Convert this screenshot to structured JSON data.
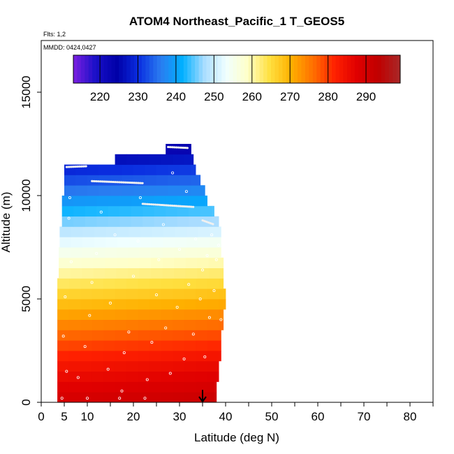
{
  "chart_data": {
    "type": "heatmap",
    "title": "ATOM4 Northeast_Pacific_1 T_GEOS5",
    "subtitle_flights": "Flts: 1,2",
    "subtitle_dates": "MMDD: 0424,0427",
    "xlabel": "Latitude (deg N)",
    "ylabel": "Altitude (m)",
    "xlim": [
      0,
      85
    ],
    "ylim": [
      0,
      17500
    ],
    "x_ticks": [
      0,
      5,
      10,
      20,
      30,
      40,
      50,
      60,
      70,
      80
    ],
    "x_minor_ticks": [
      0,
      5,
      10,
      15,
      20,
      25,
      30,
      35,
      40,
      45,
      50,
      55,
      60,
      65,
      70,
      75,
      80,
      85
    ],
    "y_ticks": [
      0,
      5000,
      10000,
      15000
    ],
    "grid": false,
    "colorbar": {
      "range": [
        213,
        299
      ],
      "ticks": [
        220,
        230,
        240,
        250,
        260,
        270,
        280,
        290
      ],
      "colors": [
        "#7b1fe0",
        "#1a10c8",
        "#0000a8",
        "#0a2ee0",
        "#2a7cf0",
        "#00b0ff",
        "#a8dcff",
        "#f0ffff",
        "#ffffc8",
        "#ffe040",
        "#ffb000",
        "#ff7000",
        "#ff2000",
        "#e00000",
        "#c00000",
        "#a82828"
      ]
    },
    "temperature_profile": {
      "altitudes": [
        0,
        2000,
        4000,
        6000,
        8000,
        10000,
        11500,
        12500
      ],
      "temperatures": [
        290,
        283,
        273,
        262,
        251,
        237,
        228,
        219
      ]
    },
    "bands": [
      {
        "altitude_bottom": 0,
        "altitude_top": 500,
        "lat_start": 3.5,
        "lat_end": 38
      },
      {
        "altitude_bottom": 500,
        "altitude_top": 1000,
        "lat_start": 3.5,
        "lat_end": 38
      },
      {
        "altitude_bottom": 1000,
        "altitude_top": 1500,
        "lat_start": 3.5,
        "lat_end": 38.5
      },
      {
        "altitude_bottom": 1500,
        "altitude_top": 2000,
        "lat_start": 3.5,
        "lat_end": 38.5
      },
      {
        "altitude_bottom": 2000,
        "altitude_top": 2500,
        "lat_start": 3.5,
        "lat_end": 39
      },
      {
        "altitude_bottom": 2500,
        "altitude_top": 3000,
        "lat_start": 3.5,
        "lat_end": 39
      },
      {
        "altitude_bottom": 3000,
        "altitude_top": 3500,
        "lat_start": 3.5,
        "lat_end": 39
      },
      {
        "altitude_bottom": 3500,
        "altitude_top": 4000,
        "lat_start": 3.5,
        "lat_end": 39.5
      },
      {
        "altitude_bottom": 4000,
        "altitude_top": 4500,
        "lat_start": 3.5,
        "lat_end": 39.5
      },
      {
        "altitude_bottom": 4500,
        "altitude_top": 5000,
        "lat_start": 3.5,
        "lat_end": 40
      },
      {
        "altitude_bottom": 5000,
        "altitude_top": 5500,
        "lat_start": 3.5,
        "lat_end": 40
      },
      {
        "altitude_bottom": 5500,
        "altitude_top": 6000,
        "lat_start": 3.5,
        "lat_end": 39.5
      },
      {
        "altitude_bottom": 6000,
        "altitude_top": 6500,
        "lat_start": 3.8,
        "lat_end": 39.5
      },
      {
        "altitude_bottom": 6500,
        "altitude_top": 7000,
        "lat_start": 3.8,
        "lat_end": 39.5
      },
      {
        "altitude_bottom": 7000,
        "altitude_top": 7500,
        "lat_start": 3.8,
        "lat_end": 39
      },
      {
        "altitude_bottom": 7500,
        "altitude_top": 8000,
        "lat_start": 4,
        "lat_end": 39
      },
      {
        "altitude_bottom": 8000,
        "altitude_top": 8500,
        "lat_start": 4,
        "lat_end": 39
      },
      {
        "altitude_bottom": 8500,
        "altitude_top": 9000,
        "lat_start": 4.5,
        "lat_end": 38.5
      },
      {
        "altitude_bottom": 9000,
        "altitude_top": 9500,
        "lat_start": 4.5,
        "lat_end": 37.5
      },
      {
        "altitude_bottom": 9500,
        "altitude_top": 10000,
        "lat_start": 4.5,
        "lat_end": 36
      },
      {
        "altitude_bottom": 10000,
        "altitude_top": 10500,
        "lat_start": 5,
        "lat_end": 35.5
      },
      {
        "altitude_bottom": 10500,
        "altitude_top": 11000,
        "lat_start": 5,
        "lat_end": 34.5
      },
      {
        "altitude_bottom": 11000,
        "altitude_top": 11500,
        "lat_start": 5,
        "lat_end": 33.5
      },
      {
        "altitude_bottom": 11500,
        "altitude_top": 12000,
        "lat_start": 16,
        "lat_end": 33
      },
      {
        "altitude_bottom": 12000,
        "altitude_top": 12500,
        "lat_start": 27,
        "lat_end": 32.5
      }
    ],
    "flight_tracks": [
      {
        "lat": [
          5.5,
          10
        ],
        "alt": [
          11380,
          11420
        ]
      },
      {
        "lat": [
          11,
          22
        ],
        "alt": [
          10700,
          10600
        ]
      },
      {
        "lat": [
          22,
          33
        ],
        "alt": [
          9600,
          9450
        ]
      },
      {
        "lat": [
          27.5,
          32
        ],
        "alt": [
          12350,
          12300
        ]
      },
      {
        "lat": [
          35,
          37.5
        ],
        "alt": [
          8800,
          8600
        ]
      }
    ],
    "sample_points": [
      {
        "lat": 4.5,
        "alt": 200
      },
      {
        "lat": 5.5,
        "alt": 1500
      },
      {
        "lat": 4.8,
        "alt": 3200
      },
      {
        "lat": 5.2,
        "alt": 5100
      },
      {
        "lat": 6.5,
        "alt": 6800
      },
      {
        "lat": 6,
        "alt": 8900
      },
      {
        "lat": 6.2,
        "alt": 9900
      },
      {
        "lat": 8,
        "alt": 1200
      },
      {
        "lat": 9.5,
        "alt": 2700
      },
      {
        "lat": 10,
        "alt": 200
      },
      {
        "lat": 10.5,
        "alt": 4200
      },
      {
        "lat": 11,
        "alt": 5800
      },
      {
        "lat": 12,
        "alt": 7200
      },
      {
        "lat": 13,
        "alt": 9200
      },
      {
        "lat": 14.5,
        "alt": 1600
      },
      {
        "lat": 15,
        "alt": 4800
      },
      {
        "lat": 16,
        "alt": 8100
      },
      {
        "lat": 17,
        "alt": 200
      },
      {
        "lat": 17.5,
        "alt": 550
      },
      {
        "lat": 18,
        "alt": 2400
      },
      {
        "lat": 19,
        "alt": 3400
      },
      {
        "lat": 20,
        "alt": 6100
      },
      {
        "lat": 21,
        "alt": 7800
      },
      {
        "lat": 21.5,
        "alt": 9900
      },
      {
        "lat": 22.5,
        "alt": 200
      },
      {
        "lat": 23,
        "alt": 1100
      },
      {
        "lat": 24,
        "alt": 2900
      },
      {
        "lat": 25,
        "alt": 5200
      },
      {
        "lat": 25.5,
        "alt": 6900
      },
      {
        "lat": 26.5,
        "alt": 8600
      },
      {
        "lat": 27,
        "alt": 3600
      },
      {
        "lat": 28,
        "alt": 1400
      },
      {
        "lat": 28.5,
        "alt": 11100
      },
      {
        "lat": 29.5,
        "alt": 4600
      },
      {
        "lat": 30,
        "alt": 7400
      },
      {
        "lat": 31,
        "alt": 2100
      },
      {
        "lat": 31.5,
        "alt": 10200
      },
      {
        "lat": 32,
        "alt": 5700
      },
      {
        "lat": 33,
        "alt": 3300
      },
      {
        "lat": 33.5,
        "alt": 7900
      },
      {
        "lat": 34.5,
        "alt": 5000
      },
      {
        "lat": 35,
        "alt": 6400
      },
      {
        "lat": 35.5,
        "alt": 2200
      },
      {
        "lat": 36,
        "alt": 7100
      },
      {
        "lat": 36.5,
        "alt": 4100
      },
      {
        "lat": 37,
        "alt": 8100
      },
      {
        "lat": 37.5,
        "alt": 5400
      },
      {
        "lat": 38,
        "alt": 6900
      },
      {
        "lat": 38.5,
        "alt": 7600
      },
      {
        "lat": 39,
        "alt": 4000
      }
    ],
    "marker_arrow": {
      "lat": 35,
      "alt_top": 600,
      "alt_bottom": 0
    }
  }
}
